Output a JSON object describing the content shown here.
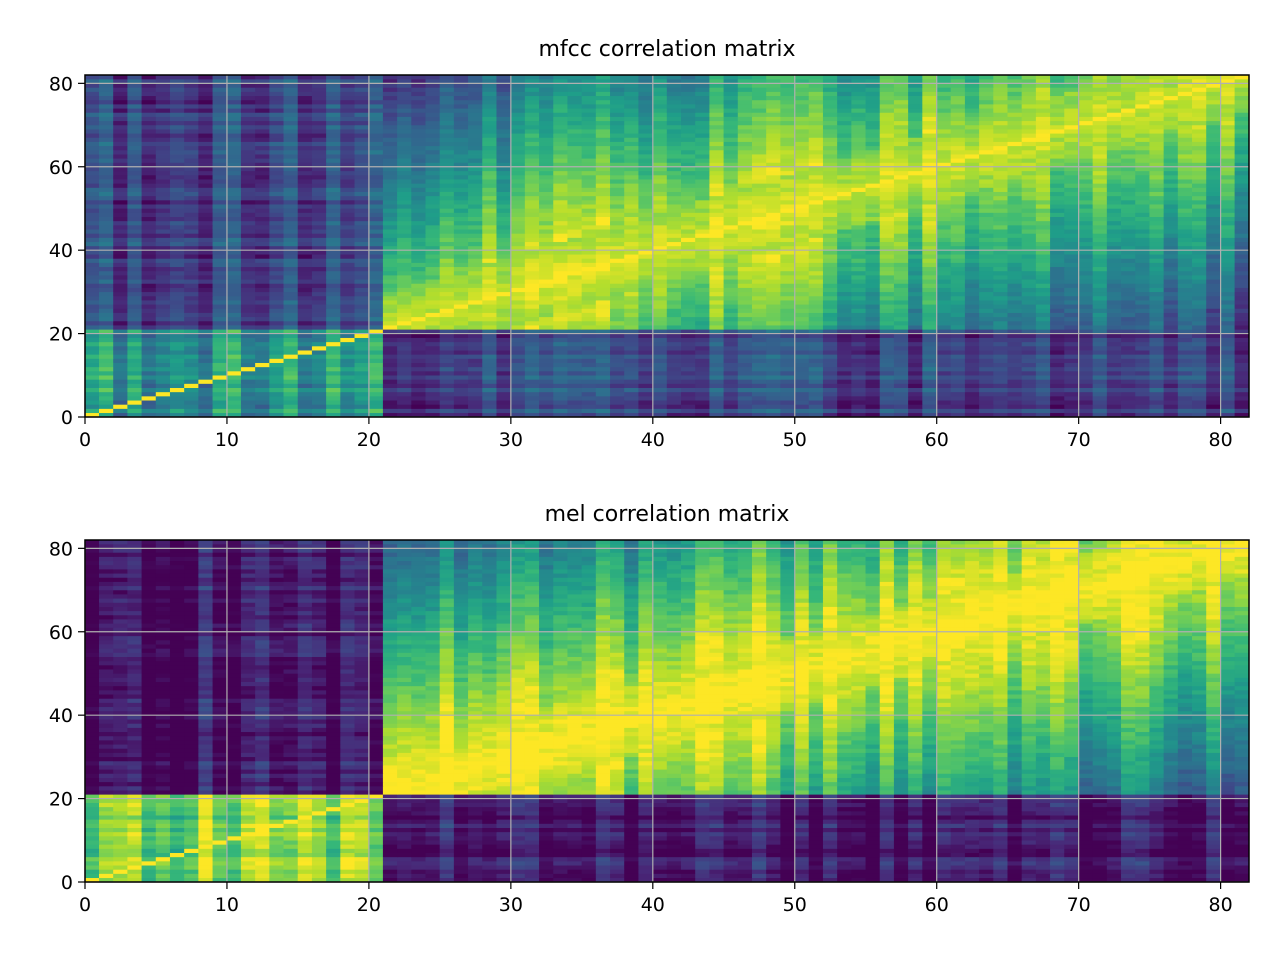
{
  "chart_data": [
    {
      "type": "heatmap",
      "title": "mfcc correlation matrix",
      "xlabel": "",
      "ylabel": "",
      "xlim": [
        0,
        82
      ],
      "ylim": [
        0,
        82
      ],
      "x_ticks": [
        "0",
        "10",
        "20",
        "30",
        "40",
        "50",
        "60",
        "70",
        "80"
      ],
      "y_ticks": [
        "0",
        "20",
        "40",
        "60",
        "80"
      ],
      "grid": true,
      "colormap": "viridis",
      "matrix_size": 82,
      "block_boundary": 21,
      "diagonal_value": 1.0,
      "block_means": {
        "low_low": 0.5,
        "high_high": 0.62,
        "low_high": 0.2
      }
    },
    {
      "type": "heatmap",
      "title": "mel correlation matrix",
      "xlabel": "",
      "ylabel": "",
      "xlim": [
        0,
        82
      ],
      "ylim": [
        0,
        82
      ],
      "x_ticks": [
        "0",
        "10",
        "20",
        "30",
        "40",
        "50",
        "60",
        "70",
        "80"
      ],
      "y_ticks": [
        "0",
        "20",
        "40",
        "60",
        "80"
      ],
      "grid": true,
      "colormap": "viridis",
      "matrix_size": 82,
      "block_boundary": 21,
      "diagonal_value": 1.0,
      "block_means": {
        "low_low": 0.82,
        "high_high": 0.7,
        "low_high": 0.05
      }
    }
  ],
  "colors": {
    "viridis_dark": "#440154",
    "viridis_mid": "#21918c",
    "viridis_bright": "#fde725",
    "grid": "#b0b0b0"
  }
}
